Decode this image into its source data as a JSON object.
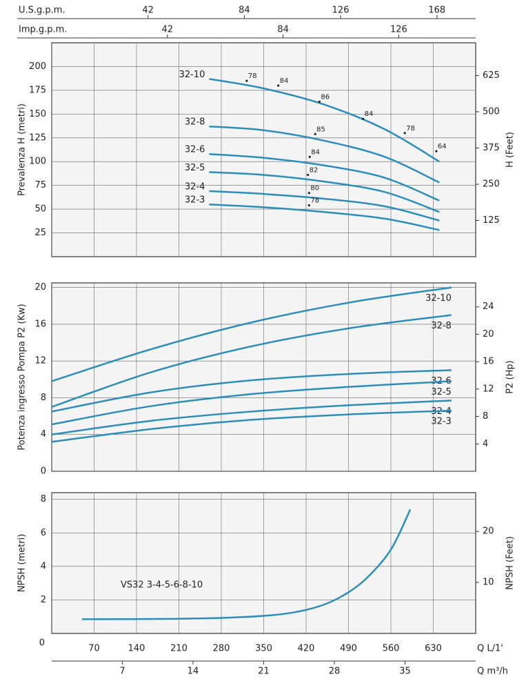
{
  "chart_data": [
    {
      "type": "line",
      "ylabel": "Prevalenza H (metri)",
      "y2label": "H (Feet)",
      "xlim": [
        0,
        700
      ],
      "ylim": [
        0,
        225
      ],
      "yticks": [
        25,
        50,
        75,
        100,
        125,
        150,
        175,
        200
      ],
      "y2lim": [
        0,
        738
      ],
      "y2ticks": [
        125,
        250,
        375,
        500,
        625
      ],
      "top_axes": [
        {
          "label": "U.S.g.p.m.",
          "ticks": [
            {
              "value": 159,
              "label": "42"
            },
            {
              "value": 318,
              "label": "84"
            },
            {
              "value": 477,
              "label": "126"
            },
            {
              "value": 636,
              "label": "168"
            }
          ]
        },
        {
          "label": "Imp.g.p.m.",
          "ticks": [
            {
              "value": 191,
              "label": "42"
            },
            {
              "value": 382,
              "label": "84"
            },
            {
              "value": 573,
              "label": "126"
            }
          ]
        }
      ],
      "x": [
        260,
        350,
        450,
        550,
        640
      ],
      "series": [
        {
          "name": "32-10",
          "color": "#2b8dbb",
          "values": [
            187,
            177,
            160,
            134,
            100
          ]
        },
        {
          "name": "32-8",
          "color": "#2b8dbb",
          "values": [
            137,
            133,
            122,
            105,
            78
          ]
        },
        {
          "name": "32-6",
          "color": "#2b8dbb",
          "values": [
            108,
            104,
            96,
            83,
            59
          ]
        },
        {
          "name": "32-5",
          "color": "#2b8dbb",
          "values": [
            89,
            86,
            79,
            68,
            47
          ]
        },
        {
          "name": "32-4",
          "color": "#2b8dbb",
          "values": [
            69,
            66,
            61,
            53,
            38
          ]
        },
        {
          "name": "32-3",
          "color": "#2b8dbb",
          "values": [
            55,
            52,
            47,
            40,
            28
          ]
        }
      ],
      "annotations": [
        {
          "label": "78",
          "x": 322,
          "y": 185
        },
        {
          "label": "84",
          "x": 374,
          "y": 180
        },
        {
          "label": "86",
          "x": 442,
          "y": 163
        },
        {
          "label": "84",
          "x": 514,
          "y": 145
        },
        {
          "label": "78",
          "x": 583,
          "y": 130
        },
        {
          "label": "64",
          "x": 635,
          "y": 111
        },
        {
          "label": "85",
          "x": 435,
          "y": 129
        },
        {
          "label": "84",
          "x": 426,
          "y": 105
        },
        {
          "label": "82",
          "x": 423,
          "y": 86
        },
        {
          "label": "80",
          "x": 425,
          "y": 67
        },
        {
          "label": "78",
          "x": 425,
          "y": 54
        }
      ]
    },
    {
      "type": "line",
      "ylabel": "Potenza ingresso Pompa P2 (Kw)",
      "y2label": "P2 (Hp)",
      "xlim": [
        0,
        700
      ],
      "ylim": [
        0,
        20.5
      ],
      "yticks": [
        0,
        4,
        8,
        12,
        16,
        20
      ],
      "y2lim": [
        0,
        27.5
      ],
      "y2ticks": [
        4,
        8,
        12,
        16,
        20,
        24
      ],
      "x": [
        0,
        165,
        330,
        495,
        660
      ],
      "series": [
        {
          "name": "32-10",
          "color": "#2b8dbb",
          "values": [
            9.8,
            13.3,
            16.2,
            18.4,
            20.0
          ]
        },
        {
          "name": "32-8",
          "color": "#2b8dbb",
          "values": [
            7.0,
            10.8,
            13.6,
            15.6,
            17.0
          ]
        },
        {
          "name": "32-6",
          "color": "#2b8dbb",
          "values": [
            6.5,
            8.6,
            9.9,
            10.6,
            11.0
          ]
        },
        {
          "name": "32-5",
          "color": "#2b8dbb",
          "values": [
            5.1,
            7.1,
            8.4,
            9.2,
            9.8
          ]
        },
        {
          "name": "32-4",
          "color": "#2b8dbb",
          "values": [
            4.0,
            5.5,
            6.5,
            7.2,
            7.7
          ]
        },
        {
          "name": "32-3",
          "color": "#2b8dbb",
          "values": [
            3.2,
            4.6,
            5.6,
            6.2,
            6.6
          ]
        }
      ]
    },
    {
      "type": "line",
      "ylabel": "NPSH (metri)",
      "y2label": "NPSH (Feet)",
      "annotation": "VS32 3-4-5-6-8-10",
      "xlim": [
        0,
        700
      ],
      "ylim": [
        0,
        8.4
      ],
      "yticks": [
        2,
        4,
        6,
        8
      ],
      "y2lim": [
        0,
        27.6
      ],
      "y2ticks": [
        10,
        20
      ],
      "xlabel": "Q L/1'",
      "x2label": "Q m³/h",
      "xticks": [
        0,
        70,
        140,
        210,
        280,
        350,
        420,
        490,
        560,
        630
      ],
      "x2ticks": [
        {
          "value": 116.7,
          "label": "7"
        },
        {
          "value": 233.3,
          "label": "14"
        },
        {
          "value": 350,
          "label": "21"
        },
        {
          "value": 466.7,
          "label": "28"
        },
        {
          "value": 583.3,
          "label": "35"
        }
      ],
      "x": [
        50,
        200,
        300,
        380,
        440,
        483,
        520,
        560,
        592
      ],
      "series": [
        {
          "color": "#2b8dbb",
          "values": [
            0.85,
            0.87,
            0.95,
            1.15,
            1.6,
            2.3,
            3.3,
            5.0,
            7.4
          ]
        }
      ]
    }
  ]
}
